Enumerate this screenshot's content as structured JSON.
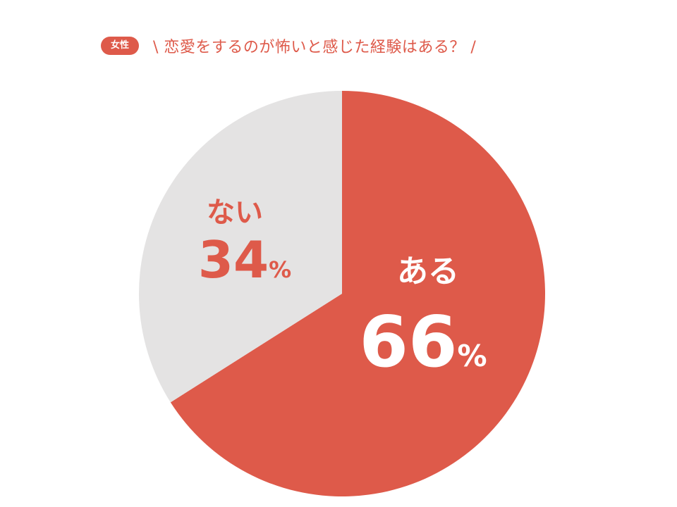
{
  "header": {
    "badge": "女性",
    "title": "\\ 恋愛をするのが怖いと感じた経験はある？ /"
  },
  "colors": {
    "accent": "#de5a4a",
    "muted": "#e4e3e3",
    "white": "#ffffff"
  },
  "chart_data": {
    "type": "pie",
    "title": "恋愛をするのが怖いと感じた経験はある？",
    "subtitle": "女性",
    "legend": "none",
    "slices": [
      {
        "label": "ある",
        "value": 66,
        "value_label": "66",
        "unit": "%",
        "color": "#de5a4a",
        "text_color": "#ffffff"
      },
      {
        "label": "ない",
        "value": 34,
        "value_label": "34",
        "unit": "%",
        "color": "#e4e3e3",
        "text_color": "#de5a4a"
      }
    ]
  }
}
